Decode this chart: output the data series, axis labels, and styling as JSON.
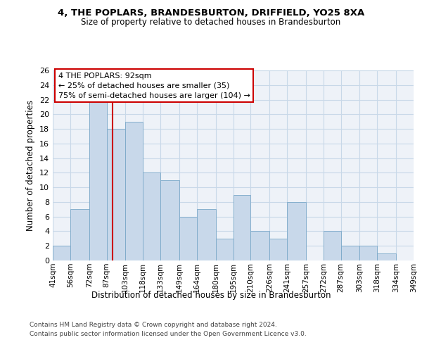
{
  "title1": "4, THE POPLARS, BRANDESBURTON, DRIFFIELD, YO25 8XA",
  "title2": "Size of property relative to detached houses in Brandesburton",
  "xlabel": "Distribution of detached houses by size in Brandesburton",
  "ylabel": "Number of detached properties",
  "footer1": "Contains HM Land Registry data © Crown copyright and database right 2024.",
  "footer2": "Contains public sector information licensed under the Open Government Licence v3.0.",
  "annotation_line1": "4 THE POPLARS: 92sqm",
  "annotation_line2": "← 25% of detached houses are smaller (35)",
  "annotation_line3": "75% of semi-detached houses are larger (104) →",
  "bar_edges": [
    41,
    56,
    72,
    87,
    103,
    118,
    133,
    149,
    164,
    180,
    195,
    210,
    226,
    241,
    257,
    272,
    287,
    303,
    318,
    334,
    349
  ],
  "bar_heights": [
    2,
    7,
    22,
    18,
    19,
    12,
    11,
    6,
    7,
    3,
    9,
    4,
    3,
    8,
    0,
    4,
    2,
    2,
    1,
    0
  ],
  "bar_color": "#c8d8ea",
  "bar_edge_color": "#7aa8c8",
  "grid_color": "#c8d8e8",
  "vline_x": 92,
  "vline_color": "#cc0000",
  "annotation_box_color": "#cc0000",
  "ylim": [
    0,
    26
  ],
  "yticks": [
    0,
    2,
    4,
    6,
    8,
    10,
    12,
    14,
    16,
    18,
    20,
    22,
    24,
    26
  ],
  "bg_color": "#eef2f8"
}
